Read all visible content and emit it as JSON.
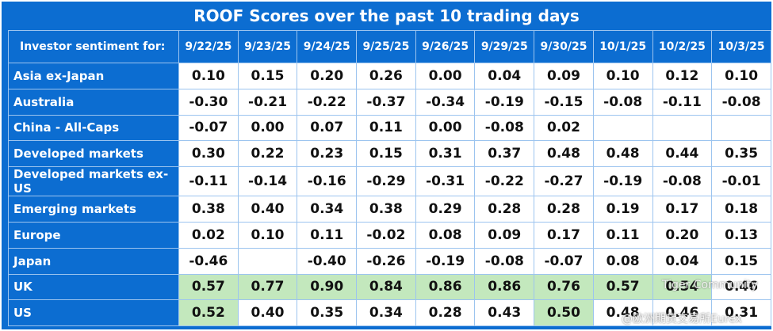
{
  "title": "ROOF Scores over the past 10 trading days",
  "header": {
    "label": "Investor sentiment for:",
    "dates": [
      "9/22/25",
      "9/23/25",
      "9/24/25",
      "9/25/25",
      "9/26/25",
      "9/29/25",
      "9/30/25",
      "10/1/25",
      "10/2/25",
      "10/3/25"
    ]
  },
  "rows": [
    {
      "name": "Asia ex-Japan",
      "values": [
        "0.10",
        "0.15",
        "0.20",
        "0.26",
        "0.00",
        "0.04",
        "0.09",
        "0.10",
        "0.12",
        "0.10"
      ]
    },
    {
      "name": "Australia",
      "values": [
        "-0.30",
        "-0.21",
        "-0.22",
        "-0.37",
        "-0.34",
        "-0.19",
        "-0.15",
        "-0.08",
        "-0.11",
        "-0.08"
      ]
    },
    {
      "name": "China - All-Caps",
      "values": [
        "-0.07",
        "0.00",
        "0.07",
        "0.11",
        "0.00",
        "-0.08",
        "0.02",
        null,
        null,
        null
      ]
    },
    {
      "name": "Developed markets",
      "values": [
        "0.30",
        "0.22",
        "0.23",
        "0.15",
        "0.31",
        "0.37",
        "0.48",
        "0.48",
        "0.44",
        "0.35"
      ]
    },
    {
      "name": "Developed markets ex-US",
      "values": [
        "-0.11",
        "-0.14",
        "-0.16",
        "-0.29",
        "-0.31",
        "-0.22",
        "-0.27",
        "-0.19",
        "-0.08",
        "-0.01"
      ]
    },
    {
      "name": "Emerging markets",
      "values": [
        "0.38",
        "0.40",
        "0.34",
        "0.38",
        "0.29",
        "0.28",
        "0.28",
        "0.19",
        "0.17",
        "0.18"
      ]
    },
    {
      "name": "Europe",
      "values": [
        "0.02",
        "0.10",
        "0.11",
        "-0.02",
        "0.08",
        "0.09",
        "0.17",
        "0.11",
        "0.20",
        "0.13"
      ]
    },
    {
      "name": "Japan",
      "values": [
        "-0.46",
        null,
        "-0.40",
        "-0.26",
        "-0.19",
        "-0.08",
        "-0.07",
        "0.08",
        "0.04",
        "0.15"
      ]
    },
    {
      "name": "UK",
      "values": [
        "0.57",
        "0.77",
        "0.90",
        "0.84",
        "0.86",
        "0.86",
        "0.76",
        "0.57",
        "0.54",
        "0.46"
      ]
    },
    {
      "name": "US",
      "values": [
        "0.52",
        "0.40",
        "0.35",
        "0.34",
        "0.28",
        "0.43",
        "0.50",
        "0.48",
        "0.46",
        "0.31"
      ]
    }
  ],
  "watermark": [
    "Tiger Community",
    "@欧洲期货交易所Eurex"
  ]
}
